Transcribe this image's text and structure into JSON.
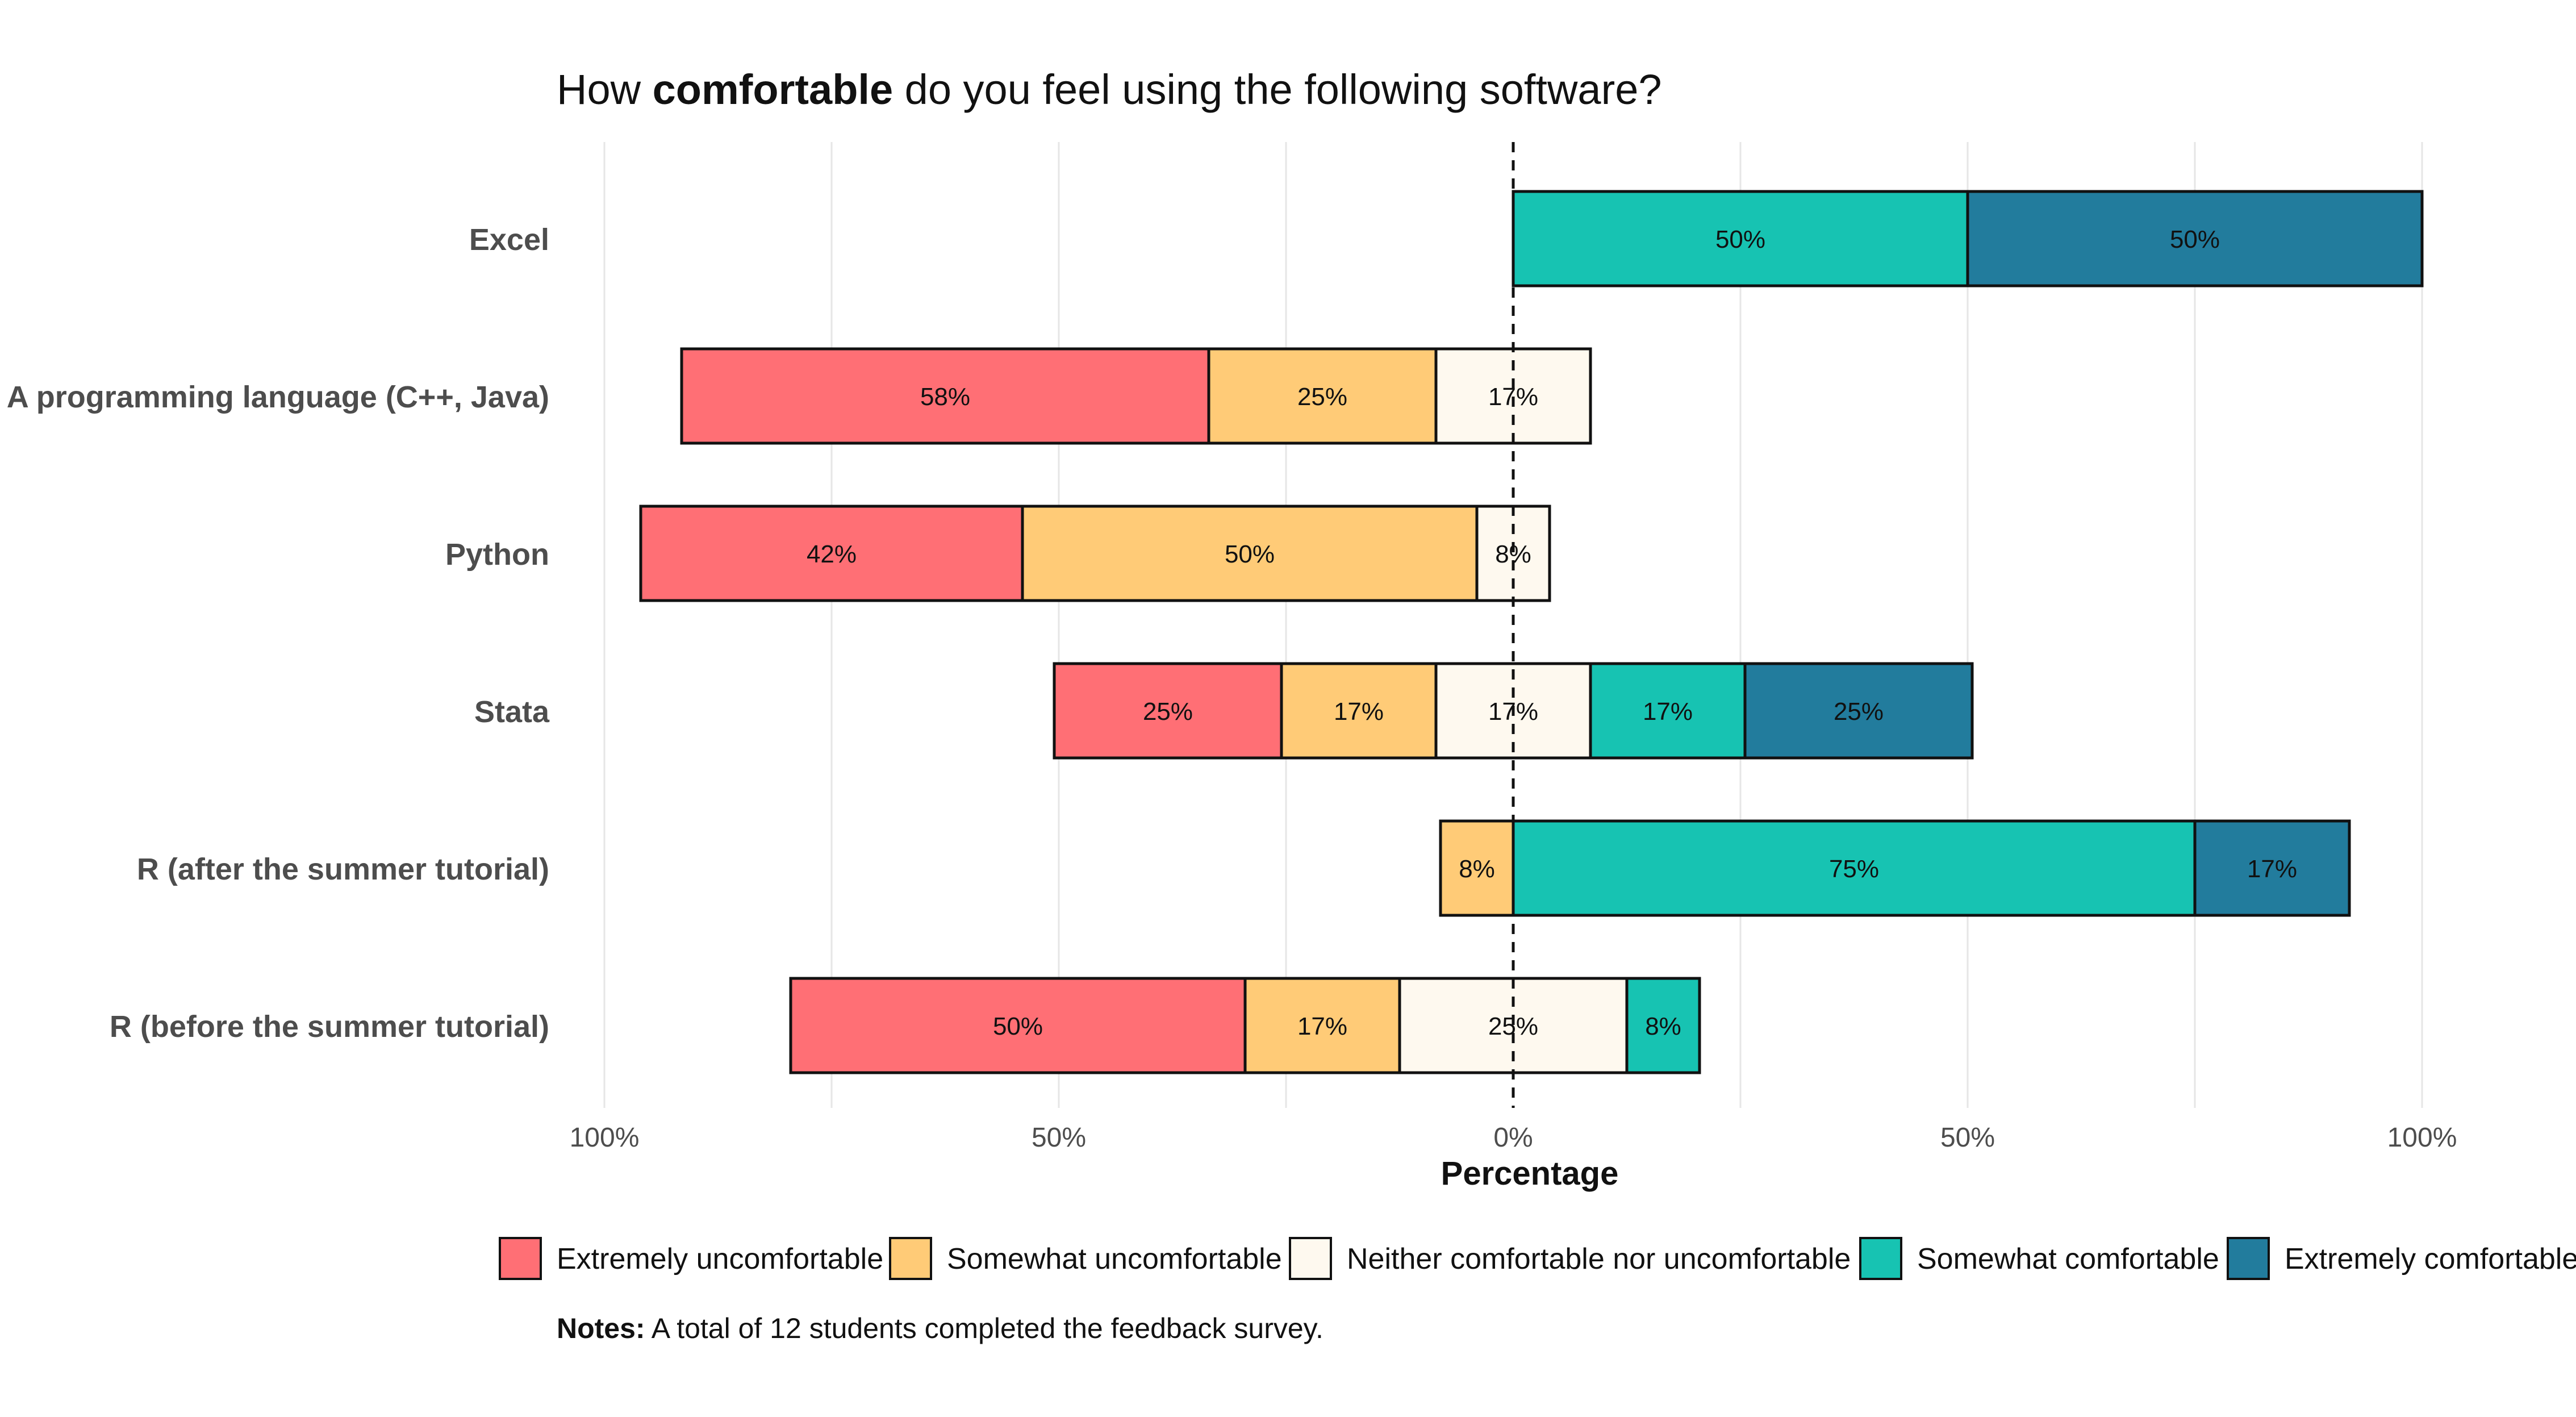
{
  "chart_data": {
    "type": "bar",
    "orientation": "horizontal",
    "stacked": "diverging",
    "title_parts": [
      {
        "text": "How ",
        "bold": false
      },
      {
        "text": "comfortable",
        "bold": true
      },
      {
        "text": " do you feel using the following software?",
        "bold": false
      }
    ],
    "xlabel": "Percentage",
    "ylabel": "",
    "xlim": [
      -100,
      100
    ],
    "x_ticks": [
      {
        "value": -100,
        "label": "100%"
      },
      {
        "value": -50,
        "label": "50%"
      },
      {
        "value": 0,
        "label": "0%"
      },
      {
        "value": 50,
        "label": "50%"
      },
      {
        "value": 100,
        "label": "100%"
      }
    ],
    "grid": "vertical",
    "reference_line": {
      "value": 0,
      "style": "dashed"
    },
    "legend_position": "bottom",
    "categories": [
      "Excel",
      "A programming language (C++, Java)",
      "Python",
      "Stata",
      "R (after the summer tutorial)",
      "R (before the summer tutorial)"
    ],
    "series": [
      {
        "name": "Extremely uncomfortable",
        "color": "#FF6F75",
        "values": [
          0,
          58,
          42,
          25,
          0,
          50
        ],
        "labels": [
          "",
          "58%",
          "42%",
          "25%",
          "",
          "50%"
        ]
      },
      {
        "name": "Somewhat uncomfortable",
        "color": "#FFCB77",
        "values": [
          0,
          25,
          50,
          17,
          8,
          17
        ],
        "labels": [
          "",
          "25%",
          "50%",
          "17%",
          "8%",
          "17%"
        ]
      },
      {
        "name": "Neither comfortable nor uncomfortable",
        "color": "#FEF9EF",
        "values": [
          0,
          17,
          8,
          17,
          0,
          25
        ],
        "labels": [
          "",
          "17%",
          "8%",
          "17%",
          "",
          "25%"
        ]
      },
      {
        "name": "Somewhat comfortable",
        "color": "#17C3B2",
        "values": [
          50,
          0,
          0,
          17,
          75,
          8
        ],
        "labels": [
          "50%",
          "",
          "",
          "17%",
          "75%",
          "8%"
        ]
      },
      {
        "name": "Extremely comfortable",
        "color": "#227C9D",
        "values": [
          50,
          0,
          0,
          25,
          17,
          0
        ],
        "labels": [
          "50%",
          "",
          "",
          "25%",
          "17%",
          ""
        ]
      }
    ],
    "note_bold": "Notes:",
    "note_text": " A total of 12 students completed the feedback survey."
  }
}
